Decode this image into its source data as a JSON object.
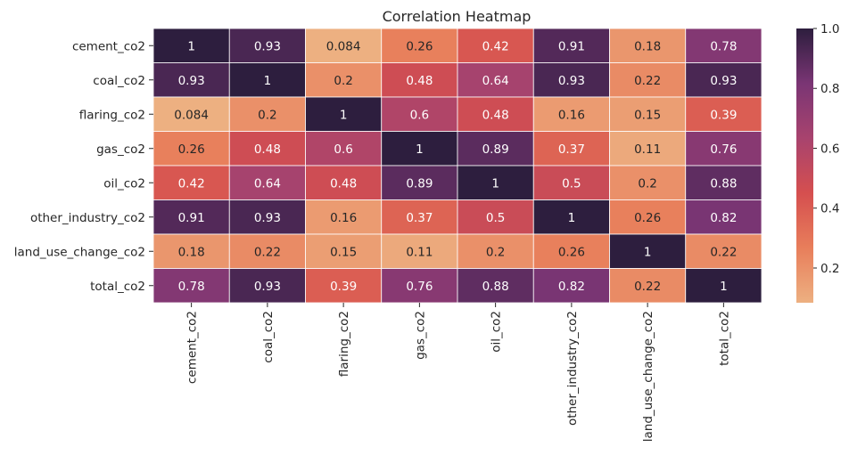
{
  "chart_data": {
    "type": "heatmap",
    "title": "Correlation Heatmap",
    "row_labels": [
      "cement_co2",
      "coal_co2",
      "flaring_co2",
      "gas_co2",
      "oil_co2",
      "other_industry_co2",
      "land_use_change_co2",
      "total_co2"
    ],
    "col_labels": [
      "cement_co2",
      "coal_co2",
      "flaring_co2",
      "gas_co2",
      "oil_co2",
      "other_industry_co2",
      "land_use_change_co2",
      "total_co2"
    ],
    "values": [
      [
        1,
        0.93,
        0.084,
        0.26,
        0.42,
        0.91,
        0.18,
        0.78
      ],
      [
        0.93,
        1,
        0.2,
        0.48,
        0.64,
        0.93,
        0.22,
        0.93
      ],
      [
        0.084,
        0.2,
        1,
        0.6,
        0.48,
        0.16,
        0.15,
        0.39
      ],
      [
        0.26,
        0.48,
        0.6,
        1,
        0.89,
        0.37,
        0.11,
        0.76
      ],
      [
        0.42,
        0.64,
        0.48,
        0.89,
        1,
        0.5,
        0.2,
        0.88
      ],
      [
        0.91,
        0.93,
        0.16,
        0.37,
        0.5,
        1,
        0.26,
        0.82
      ],
      [
        0.18,
        0.22,
        0.15,
        0.11,
        0.2,
        0.26,
        1,
        0.22
      ],
      [
        0.78,
        0.93,
        0.39,
        0.76,
        0.88,
        0.82,
        0.22,
        1
      ]
    ],
    "colorbar": {
      "range": [
        0.084,
        1.0
      ],
      "ticks": [
        0.2,
        0.4,
        0.6,
        0.8,
        1.0
      ],
      "tick_labels": [
        "0.2",
        "0.4",
        "0.6",
        "0.8",
        "1.0"
      ],
      "colormap_stops": [
        "#edb081",
        "#e87e5b",
        "#d54f4f",
        "#a8436e",
        "#7a3574",
        "#2d1e3e"
      ]
    },
    "grid_line_color": "#ffffff",
    "text_color_dark_cells": "#ffffff",
    "text_color_light_cells": "#262626"
  }
}
